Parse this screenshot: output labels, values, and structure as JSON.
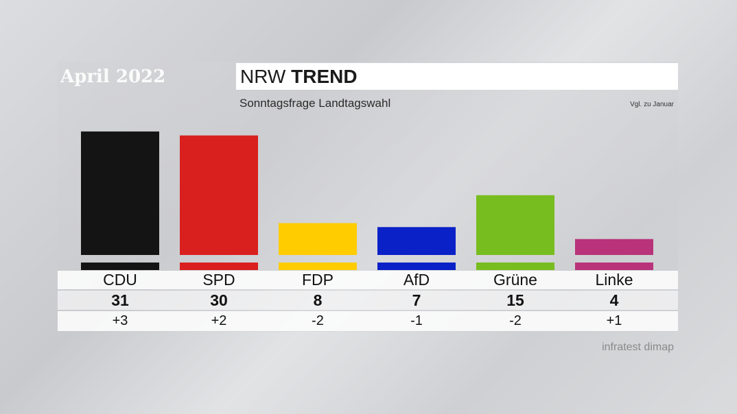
{
  "header": {
    "date": "April 2022",
    "title_light": "NRW",
    "title_bold": "TREND",
    "subtitle": "Sonntagsfrage Landtagswahl",
    "comparison_note": "Vgl. zu Januar"
  },
  "source": "infratest dimap",
  "chart_data": {
    "type": "bar",
    "title": "NRW TREND",
    "subtitle": "Sonntagsfrage Landtagswahl",
    "categories": [
      "CDU",
      "SPD",
      "FDP",
      "AfD",
      "Grüne",
      "Linke"
    ],
    "values": [
      31,
      30,
      8,
      7,
      15,
      4
    ],
    "value_labels": [
      "31",
      "30",
      "8",
      "7",
      "15",
      "4"
    ],
    "changes": [
      "+3",
      "+2",
      "-2",
      "-1",
      "-2",
      "+1"
    ],
    "colors": [
      "#141414",
      "#d9201e",
      "#ffcc00",
      "#0a21c7",
      "#78bd1f",
      "#b8337a"
    ],
    "ylim": [
      0,
      32
    ],
    "grid": false
  }
}
